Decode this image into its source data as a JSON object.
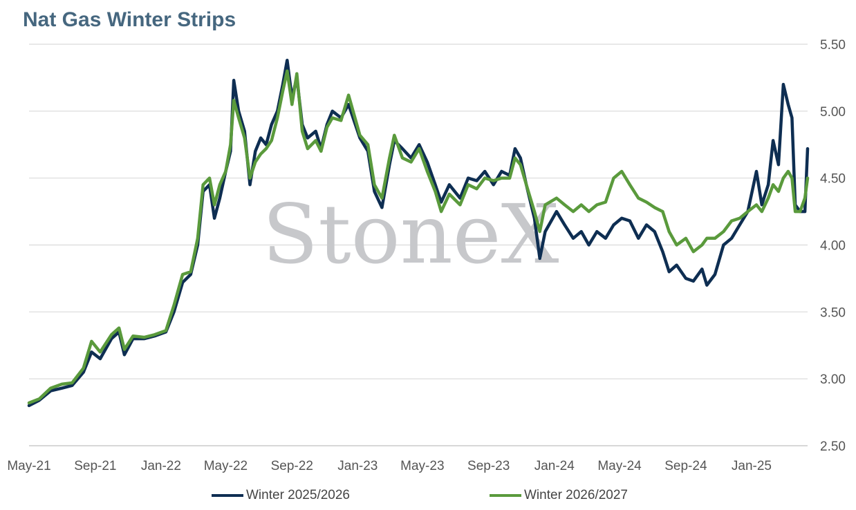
{
  "chart_data": {
    "type": "line",
    "title": "Nat Gas Winter Strips",
    "watermark": "StoneX",
    "xlabel": "",
    "ylabel": "",
    "ylim": [
      2.5,
      5.5
    ],
    "yticks": [
      "2.50",
      "3.00",
      "3.50",
      "4.00",
      "4.50",
      "5.00",
      "5.50"
    ],
    "xticks": [
      "May-21",
      "Sep-21",
      "Jan-22",
      "May-22",
      "Sep-22",
      "Jan-23",
      "May-23",
      "Sep-23",
      "Jan-24",
      "May-24",
      "Sep-24",
      "Jan-25"
    ],
    "x_range": [
      "2021-05-01",
      "2025-04-15"
    ],
    "grid": "horizontal",
    "legend_position": "bottom",
    "series": [
      {
        "name": "Winter 2025/2026",
        "color": "#0e2e52",
        "points": [
          [
            "2021-05-01",
            2.8
          ],
          [
            "2021-05-20",
            2.84
          ],
          [
            "2021-06-10",
            2.91
          ],
          [
            "2021-07-01",
            2.93
          ],
          [
            "2021-07-20",
            2.95
          ],
          [
            "2021-08-10",
            3.05
          ],
          [
            "2021-08-25",
            3.2
          ],
          [
            "2021-09-10",
            3.15
          ],
          [
            "2021-10-01",
            3.3
          ],
          [
            "2021-10-15",
            3.35
          ],
          [
            "2021-10-25",
            3.18
          ],
          [
            "2021-11-10",
            3.3
          ],
          [
            "2021-12-01",
            3.3
          ],
          [
            "2021-12-20",
            3.32
          ],
          [
            "2022-01-10",
            3.35
          ],
          [
            "2022-01-25",
            3.5
          ],
          [
            "2022-02-10",
            3.72
          ],
          [
            "2022-02-25",
            3.78
          ],
          [
            "2022-03-10",
            4.0
          ],
          [
            "2022-03-20",
            4.4
          ],
          [
            "2022-04-01",
            4.45
          ],
          [
            "2022-04-10",
            4.2
          ],
          [
            "2022-04-20",
            4.35
          ],
          [
            "2022-05-01",
            4.55
          ],
          [
            "2022-05-10",
            4.7
          ],
          [
            "2022-05-16",
            5.23
          ],
          [
            "2022-05-25",
            5.0
          ],
          [
            "2022-06-05",
            4.85
          ],
          [
            "2022-06-15",
            4.45
          ],
          [
            "2022-06-25",
            4.7
          ],
          [
            "2022-07-05",
            4.8
          ],
          [
            "2022-07-15",
            4.75
          ],
          [
            "2022-07-25",
            4.9
          ],
          [
            "2022-08-05",
            5.0
          ],
          [
            "2022-08-15",
            5.2
          ],
          [
            "2022-08-23",
            5.38
          ],
          [
            "2022-09-01",
            5.1
          ],
          [
            "2022-09-10",
            5.25
          ],
          [
            "2022-09-20",
            4.9
          ],
          [
            "2022-09-30",
            4.8
          ],
          [
            "2022-10-15",
            4.85
          ],
          [
            "2022-10-25",
            4.72
          ],
          [
            "2022-11-05",
            4.9
          ],
          [
            "2022-11-15",
            5.0
          ],
          [
            "2022-12-01",
            4.95
          ],
          [
            "2022-12-15",
            5.05
          ],
          [
            "2023-01-05",
            4.8
          ],
          [
            "2023-01-20",
            4.7
          ],
          [
            "2023-02-01",
            4.4
          ],
          [
            "2023-02-15",
            4.28
          ],
          [
            "2023-03-01",
            4.6
          ],
          [
            "2023-03-10",
            4.78
          ],
          [
            "2023-03-25",
            4.72
          ],
          [
            "2023-04-10",
            4.65
          ],
          [
            "2023-04-25",
            4.75
          ],
          [
            "2023-05-10",
            4.62
          ],
          [
            "2023-05-25",
            4.45
          ],
          [
            "2023-06-05",
            4.32
          ],
          [
            "2023-06-20",
            4.45
          ],
          [
            "2023-07-10",
            4.35
          ],
          [
            "2023-07-25",
            4.5
          ],
          [
            "2023-08-10",
            4.48
          ],
          [
            "2023-08-25",
            4.55
          ],
          [
            "2023-09-10",
            4.45
          ],
          [
            "2023-09-25",
            4.55
          ],
          [
            "2023-10-10",
            4.52
          ],
          [
            "2023-10-20",
            4.72
          ],
          [
            "2023-10-30",
            4.65
          ],
          [
            "2023-11-10",
            4.45
          ],
          [
            "2023-11-25",
            4.2
          ],
          [
            "2023-12-05",
            3.9
          ],
          [
            "2023-12-15",
            4.1
          ],
          [
            "2024-01-05",
            4.25
          ],
          [
            "2024-01-20",
            4.15
          ],
          [
            "2024-02-05",
            4.05
          ],
          [
            "2024-02-20",
            4.1
          ],
          [
            "2024-03-05",
            4.0
          ],
          [
            "2024-03-20",
            4.1
          ],
          [
            "2024-04-05",
            4.05
          ],
          [
            "2024-04-20",
            4.15
          ],
          [
            "2024-05-05",
            4.2
          ],
          [
            "2024-05-20",
            4.18
          ],
          [
            "2024-06-05",
            4.05
          ],
          [
            "2024-06-20",
            4.15
          ],
          [
            "2024-07-05",
            4.1
          ],
          [
            "2024-07-20",
            3.95
          ],
          [
            "2024-08-01",
            3.8
          ],
          [
            "2024-08-15",
            3.85
          ],
          [
            "2024-09-01",
            3.75
          ],
          [
            "2024-09-15",
            3.73
          ],
          [
            "2024-10-01",
            3.82
          ],
          [
            "2024-10-10",
            3.7
          ],
          [
            "2024-10-25",
            3.78
          ],
          [
            "2024-11-10",
            4.0
          ],
          [
            "2024-11-25",
            4.05
          ],
          [
            "2024-12-10",
            4.15
          ],
          [
            "2024-12-25",
            4.25
          ],
          [
            "2025-01-10",
            4.55
          ],
          [
            "2025-01-20",
            4.3
          ],
          [
            "2025-02-01",
            4.45
          ],
          [
            "2025-02-10",
            4.78
          ],
          [
            "2025-02-20",
            4.6
          ],
          [
            "2025-03-01",
            5.2
          ],
          [
            "2025-03-10",
            5.05
          ],
          [
            "2025-03-17",
            4.95
          ],
          [
            "2025-03-23",
            4.3
          ],
          [
            "2025-04-01",
            4.25
          ],
          [
            "2025-04-10",
            4.25
          ],
          [
            "2025-04-15",
            4.72
          ]
        ]
      },
      {
        "name": "Winter 2026/2027",
        "color": "#5a9a3c",
        "points": [
          [
            "2021-05-01",
            2.82
          ],
          [
            "2021-05-20",
            2.85
          ],
          [
            "2021-06-10",
            2.93
          ],
          [
            "2021-07-01",
            2.96
          ],
          [
            "2021-07-20",
            2.97
          ],
          [
            "2021-08-10",
            3.08
          ],
          [
            "2021-08-25",
            3.28
          ],
          [
            "2021-09-10",
            3.2
          ],
          [
            "2021-10-01",
            3.33
          ],
          [
            "2021-10-15",
            3.38
          ],
          [
            "2021-10-25",
            3.22
          ],
          [
            "2021-11-10",
            3.32
          ],
          [
            "2021-12-01",
            3.31
          ],
          [
            "2021-12-20",
            3.33
          ],
          [
            "2022-01-10",
            3.36
          ],
          [
            "2022-01-25",
            3.55
          ],
          [
            "2022-02-10",
            3.78
          ],
          [
            "2022-02-25",
            3.8
          ],
          [
            "2022-03-10",
            4.05
          ],
          [
            "2022-03-20",
            4.45
          ],
          [
            "2022-04-01",
            4.5
          ],
          [
            "2022-04-10",
            4.3
          ],
          [
            "2022-04-20",
            4.45
          ],
          [
            "2022-05-01",
            4.55
          ],
          [
            "2022-05-10",
            4.75
          ],
          [
            "2022-05-16",
            5.08
          ],
          [
            "2022-05-25",
            4.95
          ],
          [
            "2022-06-05",
            4.8
          ],
          [
            "2022-06-15",
            4.5
          ],
          [
            "2022-06-25",
            4.62
          ],
          [
            "2022-07-05",
            4.68
          ],
          [
            "2022-07-15",
            4.72
          ],
          [
            "2022-07-25",
            4.78
          ],
          [
            "2022-08-05",
            4.95
          ],
          [
            "2022-08-15",
            5.15
          ],
          [
            "2022-08-23",
            5.3
          ],
          [
            "2022-09-01",
            5.05
          ],
          [
            "2022-09-10",
            5.28
          ],
          [
            "2022-09-20",
            4.85
          ],
          [
            "2022-09-30",
            4.72
          ],
          [
            "2022-10-15",
            4.78
          ],
          [
            "2022-10-25",
            4.7
          ],
          [
            "2022-11-05",
            4.88
          ],
          [
            "2022-11-15",
            4.95
          ],
          [
            "2022-12-01",
            4.93
          ],
          [
            "2022-12-15",
            5.12
          ],
          [
            "2023-01-05",
            4.82
          ],
          [
            "2023-01-20",
            4.75
          ],
          [
            "2023-02-01",
            4.45
          ],
          [
            "2023-02-15",
            4.35
          ],
          [
            "2023-03-01",
            4.65
          ],
          [
            "2023-03-10",
            4.82
          ],
          [
            "2023-03-25",
            4.65
          ],
          [
            "2023-04-10",
            4.62
          ],
          [
            "2023-04-25",
            4.72
          ],
          [
            "2023-05-10",
            4.55
          ],
          [
            "2023-05-25",
            4.4
          ],
          [
            "2023-06-05",
            4.25
          ],
          [
            "2023-06-20",
            4.38
          ],
          [
            "2023-07-10",
            4.3
          ],
          [
            "2023-07-25",
            4.45
          ],
          [
            "2023-08-10",
            4.42
          ],
          [
            "2023-08-25",
            4.5
          ],
          [
            "2023-09-10",
            4.48
          ],
          [
            "2023-09-25",
            4.5
          ],
          [
            "2023-10-10",
            4.5
          ],
          [
            "2023-10-20",
            4.65
          ],
          [
            "2023-10-30",
            4.6
          ],
          [
            "2023-11-10",
            4.45
          ],
          [
            "2023-11-25",
            4.25
          ],
          [
            "2023-12-05",
            4.1
          ],
          [
            "2023-12-15",
            4.3
          ],
          [
            "2024-01-05",
            4.35
          ],
          [
            "2024-01-20",
            4.3
          ],
          [
            "2024-02-05",
            4.25
          ],
          [
            "2024-02-20",
            4.3
          ],
          [
            "2024-03-05",
            4.25
          ],
          [
            "2024-03-20",
            4.3
          ],
          [
            "2024-04-05",
            4.32
          ],
          [
            "2024-04-20",
            4.5
          ],
          [
            "2024-05-05",
            4.55
          ],
          [
            "2024-05-20",
            4.45
          ],
          [
            "2024-06-05",
            4.35
          ],
          [
            "2024-06-20",
            4.32
          ],
          [
            "2024-07-05",
            4.28
          ],
          [
            "2024-07-20",
            4.25
          ],
          [
            "2024-08-01",
            4.1
          ],
          [
            "2024-08-15",
            4.0
          ],
          [
            "2024-09-01",
            4.05
          ],
          [
            "2024-09-15",
            3.95
          ],
          [
            "2024-10-01",
            4.0
          ],
          [
            "2024-10-10",
            4.05
          ],
          [
            "2024-10-25",
            4.05
          ],
          [
            "2024-11-10",
            4.1
          ],
          [
            "2024-11-25",
            4.18
          ],
          [
            "2024-12-10",
            4.2
          ],
          [
            "2024-12-25",
            4.25
          ],
          [
            "2025-01-10",
            4.3
          ],
          [
            "2025-01-20",
            4.25
          ],
          [
            "2025-02-01",
            4.35
          ],
          [
            "2025-02-10",
            4.45
          ],
          [
            "2025-02-20",
            4.4
          ],
          [
            "2025-03-01",
            4.5
          ],
          [
            "2025-03-10",
            4.55
          ],
          [
            "2025-03-17",
            4.5
          ],
          [
            "2025-03-23",
            4.25
          ],
          [
            "2025-04-01",
            4.25
          ],
          [
            "2025-04-10",
            4.35
          ],
          [
            "2025-04-15",
            4.5
          ]
        ]
      }
    ]
  }
}
